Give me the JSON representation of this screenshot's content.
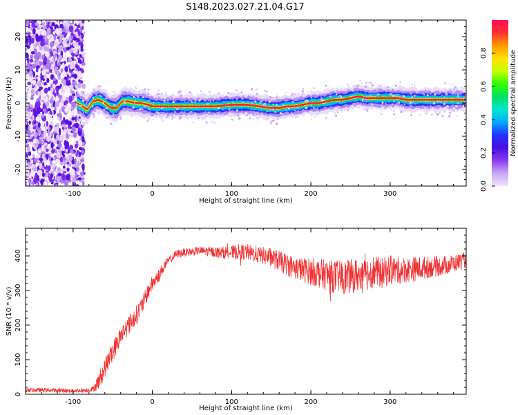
{
  "title": "S148.2023.027.21.04.G17",
  "colorbar": {
    "label": "Normalized spectral amplitude",
    "ticks": [
      "0.0",
      "0.2",
      "0.4",
      "0.6",
      "0.8"
    ],
    "tick_values": [
      0.0,
      0.2,
      0.4,
      0.6,
      0.8
    ],
    "range": [
      0,
      1
    ],
    "colormap": [
      "#f0e4fb",
      "#c8a8f0",
      "#8a3cf0",
      "#4a10e0",
      "#2233ff",
      "#00aaff",
      "#00e8d0",
      "#00e060",
      "#30ff00",
      "#c8ff00",
      "#ffe000",
      "#ff9a00",
      "#ff3030",
      "#ff1050"
    ]
  },
  "chart_data": [
    {
      "type": "heatmap",
      "xlabel": "Height of straight line (km)",
      "ylabel": "Frequency (Hz)",
      "xlim": [
        -160,
        396
      ],
      "ylim": [
        -25,
        25
      ],
      "xticks": [
        -100,
        0,
        100,
        200,
        300
      ],
      "xtick_labels": [
        "-100",
        "0",
        "100",
        "200",
        "300"
      ],
      "yticks": [
        -20,
        -10,
        0,
        10,
        20
      ],
      "ytick_labels": [
        "-20",
        "-10",
        "0",
        "10",
        "20"
      ],
      "noise_region_x": [
        -160,
        -95
      ],
      "ridge": {
        "x": [
          -95,
          -88,
          -82,
          -75,
          -68,
          -60,
          -52,
          -45,
          -38,
          -30,
          -22,
          -15,
          -5,
          0,
          20,
          40,
          60,
          80,
          100,
          120,
          135,
          150,
          160,
          170,
          180,
          190,
          200,
          210,
          220,
          230,
          240,
          250,
          260,
          270,
          280,
          290,
          300,
          310,
          320,
          330,
          340,
          360,
          380,
          396
        ],
        "frequency": [
          0,
          -1,
          -2,
          0.5,
          1,
          0,
          -1.5,
          -1.5,
          0.5,
          0.5,
          0,
          0,
          -0.5,
          -1,
          -1,
          -1,
          -1,
          -1,
          -0.5,
          -0.5,
          -1,
          -1.5,
          -1.5,
          -1,
          -1,
          -0.5,
          0,
          0,
          0.5,
          1,
          1,
          1.5,
          2,
          1.5,
          1.5,
          1.5,
          1.5,
          1.5,
          1,
          1,
          1,
          1,
          1,
          1
        ]
      }
    },
    {
      "type": "line",
      "xlabel": "Height of straight line (km)",
      "ylabel": "SNR (10 * v/v)",
      "xlim": [
        -160,
        396
      ],
      "ylim": [
        0,
        480
      ],
      "xticks": [
        -100,
        0,
        100,
        200,
        300
      ],
      "xtick_labels": [
        "-100",
        "0",
        "100",
        "200",
        "300"
      ],
      "yticks": [
        0,
        100,
        200,
        300,
        400
      ],
      "ytick_labels": [
        "0",
        "100",
        "200",
        "300",
        "400"
      ],
      "color": "#f03232",
      "series": [
        {
          "x": [
            -160,
            -140,
            -120,
            -100,
            -80,
            -75,
            -70,
            -65,
            -60,
            -55,
            -50,
            -45,
            -40,
            -35,
            -30,
            -25,
            -20,
            -15,
            -10,
            -5,
            0,
            5,
            10,
            15,
            20,
            25,
            30,
            40,
            50,
            60,
            70,
            80,
            90,
            100,
            110,
            120,
            130,
            140,
            150,
            160,
            170,
            180,
            190,
            200,
            210,
            220,
            230,
            240,
            250,
            260,
            265,
            270,
            280,
            290,
            300,
            310,
            320,
            330,
            340,
            350,
            360,
            370,
            380,
            390,
            396
          ],
          "y": [
            12,
            12,
            11,
            10,
            12,
            15,
            30,
            50,
            75,
            100,
            125,
            145,
            170,
            185,
            200,
            215,
            230,
            250,
            270,
            300,
            320,
            335,
            350,
            370,
            385,
            395,
            405,
            410,
            412,
            415,
            413,
            410,
            410,
            410,
            412,
            410,
            405,
            400,
            395,
            385,
            375,
            365,
            360,
            355,
            350,
            345,
            340,
            338,
            340,
            345,
            330,
            350,
            355,
            350,
            360,
            358,
            360,
            362,
            365,
            368,
            370,
            373,
            378,
            385,
            388
          ],
          "noise": [
            6,
            6,
            6,
            6,
            6,
            8,
            20,
            28,
            30,
            30,
            30,
            30,
            28,
            28,
            28,
            28,
            28,
            26,
            26,
            24,
            22,
            20,
            18,
            15,
            12,
            12,
            12,
            12,
            12,
            12,
            14,
            16,
            18,
            20,
            22,
            24,
            24,
            26,
            28,
            30,
            32,
            34,
            36,
            40,
            42,
            45,
            48,
            50,
            50,
            50,
            50,
            50,
            48,
            45,
            42,
            40,
            38,
            36,
            34,
            32,
            30,
            28,
            26,
            24,
            22
          ]
        }
      ]
    }
  ]
}
